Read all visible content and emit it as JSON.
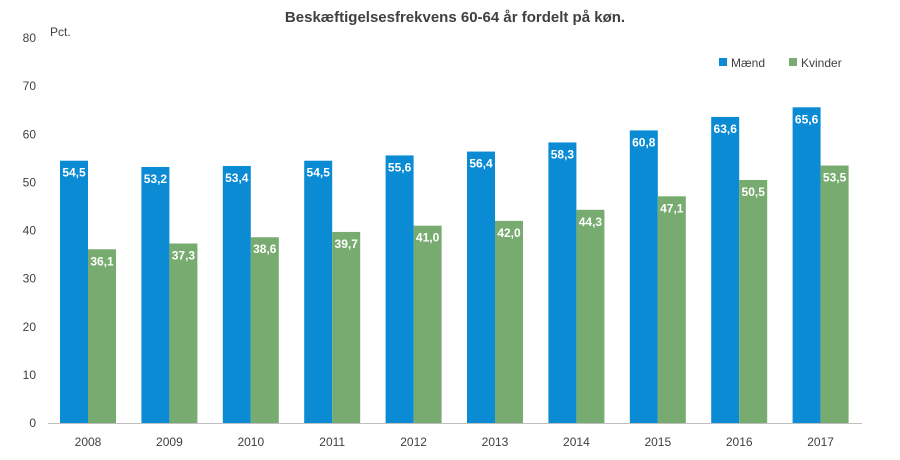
{
  "chart_data": {
    "type": "bar",
    "title": "Beskæftigelsesfrekvens 60-64 år fordelt på køn.",
    "unit_label": "Pct.",
    "xlabel": "",
    "ylabel": "",
    "categories": [
      "2008",
      "2009",
      "2010",
      "2011",
      "2012",
      "2013",
      "2014",
      "2015",
      "2016",
      "2017"
    ],
    "series": [
      {
        "name": "Mænd",
        "color": "#0a8bd4",
        "values": [
          54.5,
          53.2,
          53.4,
          54.5,
          55.6,
          56.4,
          58.3,
          60.8,
          63.6,
          65.6
        ],
        "labels": [
          "54,5",
          "53,2",
          "53,4",
          "54,5",
          "55,6",
          "56,4",
          "58,3",
          "60,8",
          "63,6",
          "65,6"
        ]
      },
      {
        "name": "Kvinder",
        "color": "#77ab6f",
        "values": [
          36.1,
          37.3,
          38.6,
          39.7,
          41.0,
          42.0,
          44.3,
          47.1,
          50.5,
          53.5
        ],
        "labels": [
          "36,1",
          "37,3",
          "38,6",
          "39,7",
          "41,0",
          "42,0",
          "44,3",
          "47,1",
          "50,5",
          "53,5"
        ]
      }
    ],
    "ylim": [
      0,
      80
    ],
    "yticks": [
      "0",
      "10",
      "20",
      "30",
      "40",
      "50",
      "60",
      "70",
      "80"
    ],
    "grid": false,
    "legend_position": "top-right"
  }
}
